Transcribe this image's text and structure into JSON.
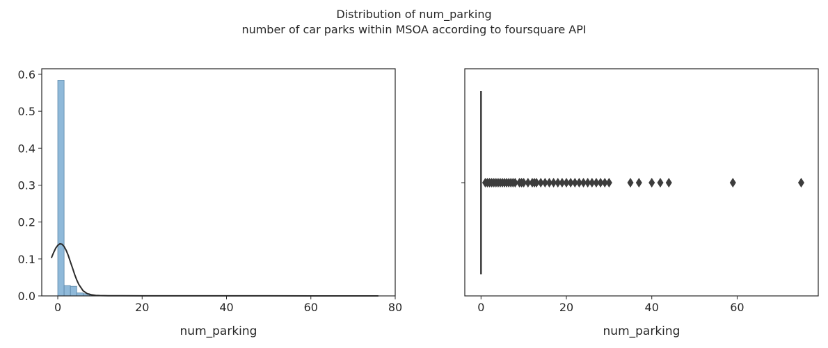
{
  "figure": {
    "title": "Distribution of num_parking",
    "subtitle": "number of car parks within MSOA according to foursquare API"
  },
  "chart_data": [
    {
      "type": "histogram",
      "xlabel": "num_parking",
      "ylabel": "",
      "xlim": [
        -3.8,
        80
      ],
      "ylim": [
        0,
        0.615
      ],
      "xticks": [
        0,
        20,
        40,
        60,
        80
      ],
      "yticks": [
        0.0,
        0.1,
        0.2,
        0.3,
        0.4,
        0.5,
        0.6
      ],
      "bars": [
        {
          "x0": 0.0,
          "x1": 1.5,
          "value": 0.584
        },
        {
          "x0": 1.5,
          "x1": 3.0,
          "value": 0.028
        },
        {
          "x0": 3.0,
          "x1": 4.5,
          "value": 0.026
        },
        {
          "x0": 4.5,
          "x1": 6.0,
          "value": 0.008
        },
        {
          "x0": 6.0,
          "x1": 7.5,
          "value": 0.006
        },
        {
          "x0": 7.5,
          "x1": 9.0,
          "value": 0.002
        },
        {
          "x0": 9.0,
          "x1": 10.5,
          "value": 0.001
        },
        {
          "x0": 10.5,
          "x1": 12.0,
          "value": 0.001
        },
        {
          "x0": 12.0,
          "x1": 13.5,
          "value": 0.001
        }
      ],
      "kde": {
        "x": [
          -1.5,
          -1,
          -0.5,
          0,
          0.5,
          1,
          1.5,
          2,
          2.5,
          3,
          3.5,
          4,
          4.5,
          5,
          6,
          7,
          8,
          9,
          10,
          12,
          15,
          20,
          30,
          40,
          50,
          60,
          70,
          76
        ],
        "y": [
          0.103,
          0.117,
          0.129,
          0.137,
          0.141,
          0.14,
          0.134,
          0.123,
          0.109,
          0.092,
          0.075,
          0.058,
          0.043,
          0.031,
          0.014,
          0.006,
          0.003,
          0.0015,
          0.001,
          0.0005,
          0.0003,
          0.0002,
          0.0001,
          0.0001,
          0.0001,
          0.0,
          0.0,
          0.0
        ]
      },
      "bar_color": "#8fb9d9",
      "line_color": "#2b2b2b"
    },
    {
      "type": "box",
      "xlabel": "num_parking",
      "xlim": [
        -3.8,
        79
      ],
      "xticks": [
        0,
        20,
        40,
        60
      ],
      "box": {
        "q1": 0,
        "median": 0,
        "q3": 0,
        "whisker_low": 0,
        "whisker_high": 0
      },
      "outliers": [
        1,
        1.5,
        2,
        2.5,
        3,
        3.5,
        4,
        4.5,
        5,
        5.5,
        6,
        6.5,
        7,
        7.5,
        8,
        9,
        9.5,
        10,
        11,
        12,
        12.5,
        13,
        14,
        15,
        16,
        17,
        18,
        19,
        20,
        21,
        22,
        23,
        24,
        25,
        26,
        27,
        28,
        29,
        30,
        35,
        37,
        40,
        42,
        44,
        59,
        75
      ],
      "color": "#3c3c3c"
    }
  ]
}
